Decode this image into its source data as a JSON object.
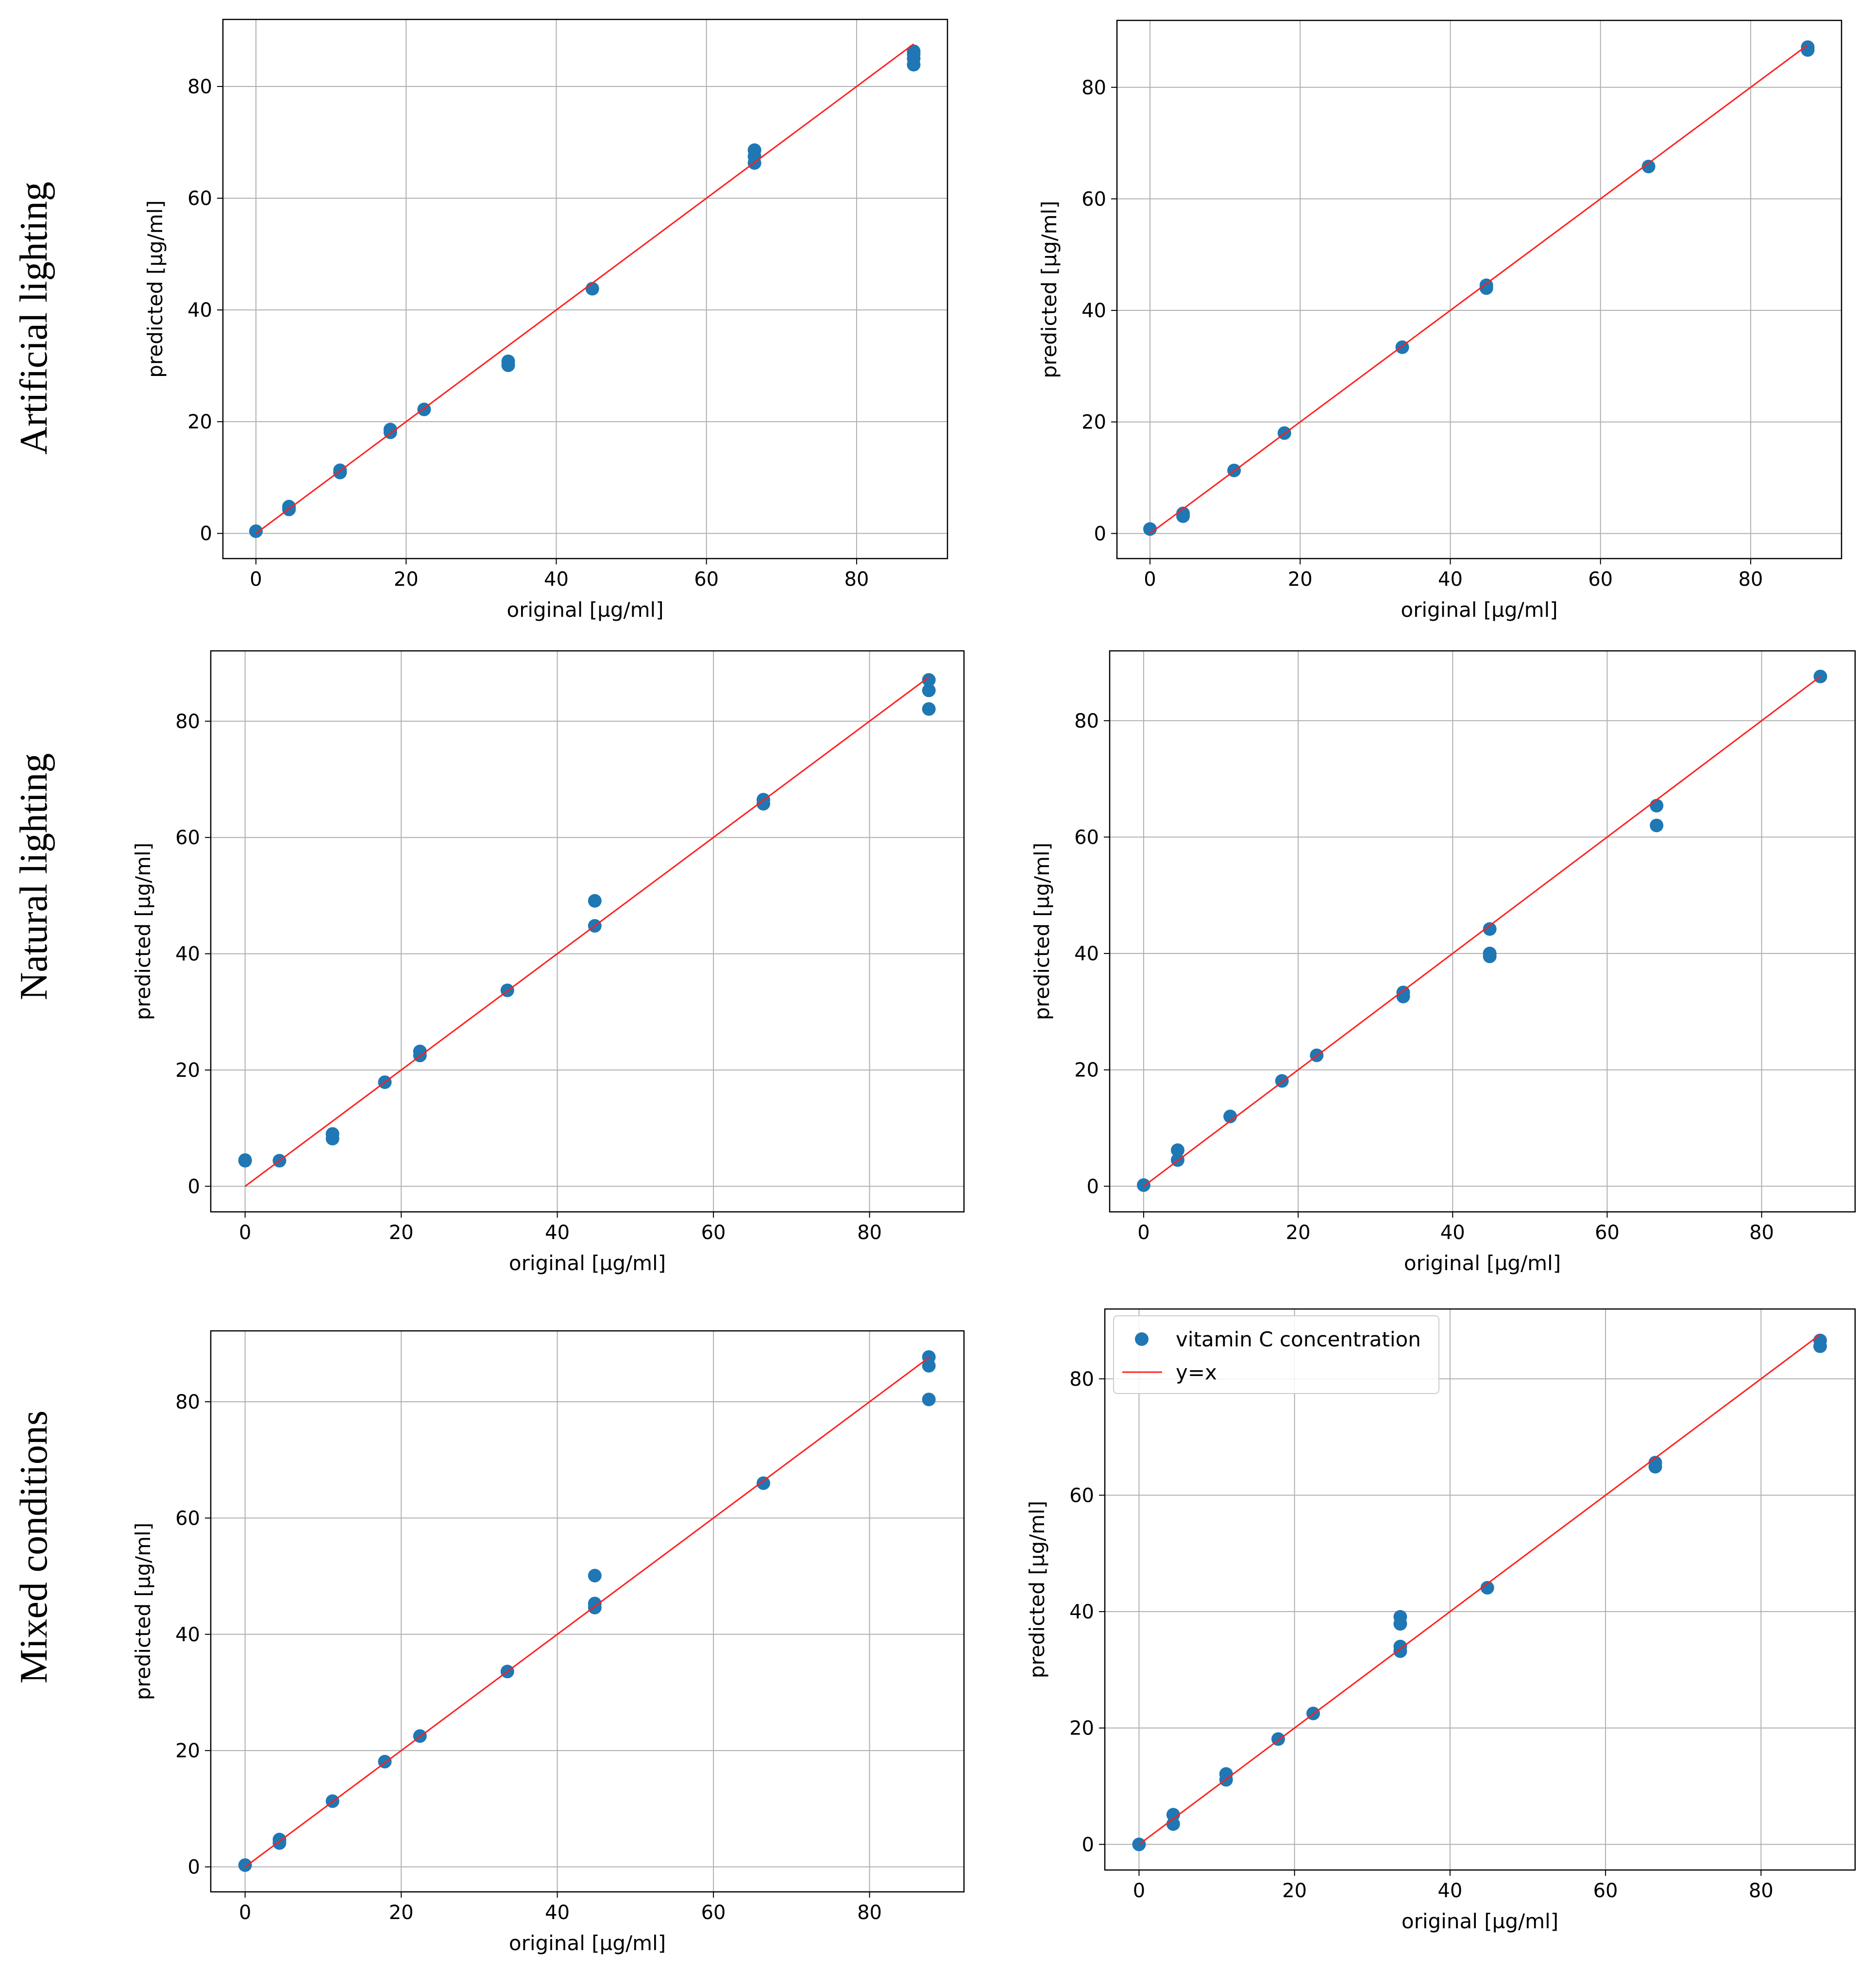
{
  "row_labels": [
    "Artificial lighting",
    "Natural lighting",
    "Mixed conditions"
  ],
  "colors": {
    "points": "#1f77b4",
    "line": "#ff2020",
    "grid": "#b0b0b0",
    "axes": "#000000"
  },
  "legend": {
    "placement": "upper-left",
    "entries": [
      "vitamin C concentration",
      "y=x"
    ]
  },
  "chart_data": [
    {
      "type": "scatter",
      "row": "Artificial lighting",
      "column": 1,
      "xlabel": "original [µg/ml]",
      "ylabel": "predicted [µg/ml]",
      "xlim": [
        -4.4,
        92.1
      ],
      "ylim": [
        -4.5,
        92.0
      ],
      "xticks": [
        0,
        20,
        40,
        60,
        80
      ],
      "yticks": [
        0,
        20,
        40,
        60,
        80
      ],
      "grid": true,
      "reference_line": {
        "label": "y=x",
        "from": [
          0,
          0
        ],
        "to": [
          87.6,
          87.6
        ]
      },
      "series": [
        {
          "name": "vitamin C concentration",
          "x": [
            0,
            4.4,
            4.4,
            11.2,
            11.2,
            17.9,
            17.9,
            22.4,
            33.6,
            33.6,
            44.8,
            66.4,
            66.4,
            66.4,
            87.6,
            87.6,
            87.6,
            87.6
          ],
          "y": [
            0.4,
            4.3,
            4.8,
            10.9,
            11.3,
            18.1,
            18.6,
            22.2,
            30.1,
            30.8,
            43.8,
            66.3,
            67.5,
            68.6,
            83.9,
            85.0,
            85.8,
            86.3
          ]
        }
      ]
    },
    {
      "type": "scatter",
      "row": "Artificial lighting",
      "column": 2,
      "xlabel": "original [µg/ml]",
      "ylabel": "predicted [µg/ml]",
      "xlim": [
        -4.4,
        92.1
      ],
      "ylim": [
        -4.5,
        92.0
      ],
      "xticks": [
        0,
        20,
        40,
        60,
        80
      ],
      "yticks": [
        0,
        20,
        40,
        60,
        80
      ],
      "grid": true,
      "reference_line": {
        "label": "y=x",
        "from": [
          0,
          0
        ],
        "to": [
          87.6,
          87.6
        ]
      },
      "series": [
        {
          "name": "vitamin C concentration",
          "x": [
            0,
            4.4,
            4.4,
            11.2,
            17.9,
            33.6,
            44.8,
            44.8,
            66.4,
            87.6,
            87.6
          ],
          "y": [
            0.8,
            3.1,
            3.6,
            11.3,
            18.0,
            33.4,
            44.0,
            44.5,
            65.8,
            86.7,
            87.2
          ]
        }
      ]
    },
    {
      "type": "scatter",
      "row": "Natural lighting",
      "column": 1,
      "xlabel": "original [µg/ml]",
      "ylabel": "predicted [µg/ml]",
      "xlim": [
        -4.4,
        92.1
      ],
      "ylim": [
        -4.4,
        92.1
      ],
      "xticks": [
        0,
        20,
        40,
        60,
        80
      ],
      "yticks": [
        0,
        20,
        40,
        60,
        80
      ],
      "grid": true,
      "reference_line": {
        "label": "y=x",
        "from": [
          0,
          0
        ],
        "to": [
          87.6,
          87.6
        ]
      },
      "series": [
        {
          "name": "vitamin C concentration",
          "x": [
            0,
            0,
            4.4,
            11.2,
            11.2,
            17.9,
            22.4,
            22.4,
            33.6,
            44.8,
            44.8,
            66.4,
            66.4,
            87.6,
            87.6,
            87.6
          ],
          "y": [
            4.4,
            4.5,
            4.4,
            8.2,
            9.0,
            17.9,
            22.5,
            23.2,
            33.7,
            44.8,
            49.1,
            65.8,
            66.5,
            82.1,
            85.3,
            87.1
          ]
        }
      ]
    },
    {
      "type": "scatter",
      "row": "Natural lighting",
      "column": 2,
      "xlabel": "original [µg/ml]",
      "ylabel": "predicted [µg/ml]",
      "xlim": [
        -4.4,
        92.1
      ],
      "ylim": [
        -4.4,
        92.0
      ],
      "xticks": [
        0,
        20,
        40,
        60,
        80
      ],
      "yticks": [
        0,
        20,
        40,
        60,
        80
      ],
      "grid": true,
      "reference_line": {
        "label": "y=x",
        "from": [
          0,
          0
        ],
        "to": [
          87.6,
          87.6
        ]
      },
      "series": [
        {
          "name": "vitamin C concentration",
          "x": [
            0,
            4.4,
            4.4,
            11.2,
            17.9,
            22.4,
            33.6,
            33.6,
            44.8,
            44.8,
            44.8,
            66.4,
            66.4,
            87.6
          ],
          "y": [
            0.2,
            4.5,
            6.2,
            12.0,
            18.1,
            22.5,
            32.6,
            33.3,
            39.5,
            40.0,
            44.2,
            62.0,
            65.4,
            87.6
          ]
        }
      ]
    },
    {
      "type": "scatter",
      "row": "Mixed conditions",
      "column": 1,
      "xlabel": "original [µg/ml]",
      "ylabel": "predicted [µg/ml]",
      "xlim": [
        -4.4,
        92.1
      ],
      "ylim": [
        -4.3,
        92.2
      ],
      "xticks": [
        0,
        20,
        40,
        60,
        80
      ],
      "yticks": [
        0,
        20,
        40,
        60,
        80
      ],
      "grid": true,
      "reference_line": {
        "label": "y=x",
        "from": [
          0,
          0
        ],
        "to": [
          87.6,
          87.6
        ]
      },
      "series": [
        {
          "name": "vitamin C concentration",
          "x": [
            0,
            4.4,
            4.4,
            11.2,
            17.9,
            22.4,
            33.6,
            44.8,
            44.8,
            44.8,
            66.4,
            87.6,
            87.6,
            87.6
          ],
          "y": [
            0.3,
            4.1,
            4.7,
            11.3,
            18.1,
            22.5,
            33.6,
            44.6,
            45.3,
            50.1,
            66.0,
            80.4,
            86.2,
            87.7
          ]
        }
      ]
    },
    {
      "type": "scatter",
      "row": "Mixed conditions",
      "column": 2,
      "xlabel": "original [µg/ml]",
      "ylabel": "predicted [µg/ml]",
      "xlim": [
        -4.4,
        92.1
      ],
      "ylim": [
        -4.4,
        92.0
      ],
      "xticks": [
        0,
        20,
        40,
        60,
        80
      ],
      "yticks": [
        0,
        20,
        40,
        60,
        80
      ],
      "grid": true,
      "legend": true,
      "reference_line": {
        "label": "y=x",
        "from": [
          0,
          0
        ],
        "to": [
          87.6,
          87.6
        ]
      },
      "series": [
        {
          "name": "vitamin C concentration",
          "x": [
            0,
            4.4,
            4.4,
            11.2,
            11.2,
            17.9,
            22.4,
            33.6,
            33.6,
            33.6,
            33.6,
            44.8,
            66.4,
            66.4,
            87.6,
            87.6
          ],
          "y": [
            0,
            3.5,
            5.1,
            11.1,
            12.1,
            18.1,
            22.5,
            33.2,
            34.0,
            37.9,
            39.1,
            44.1,
            64.9,
            65.6,
            85.6,
            86.6
          ]
        }
      ]
    }
  ]
}
